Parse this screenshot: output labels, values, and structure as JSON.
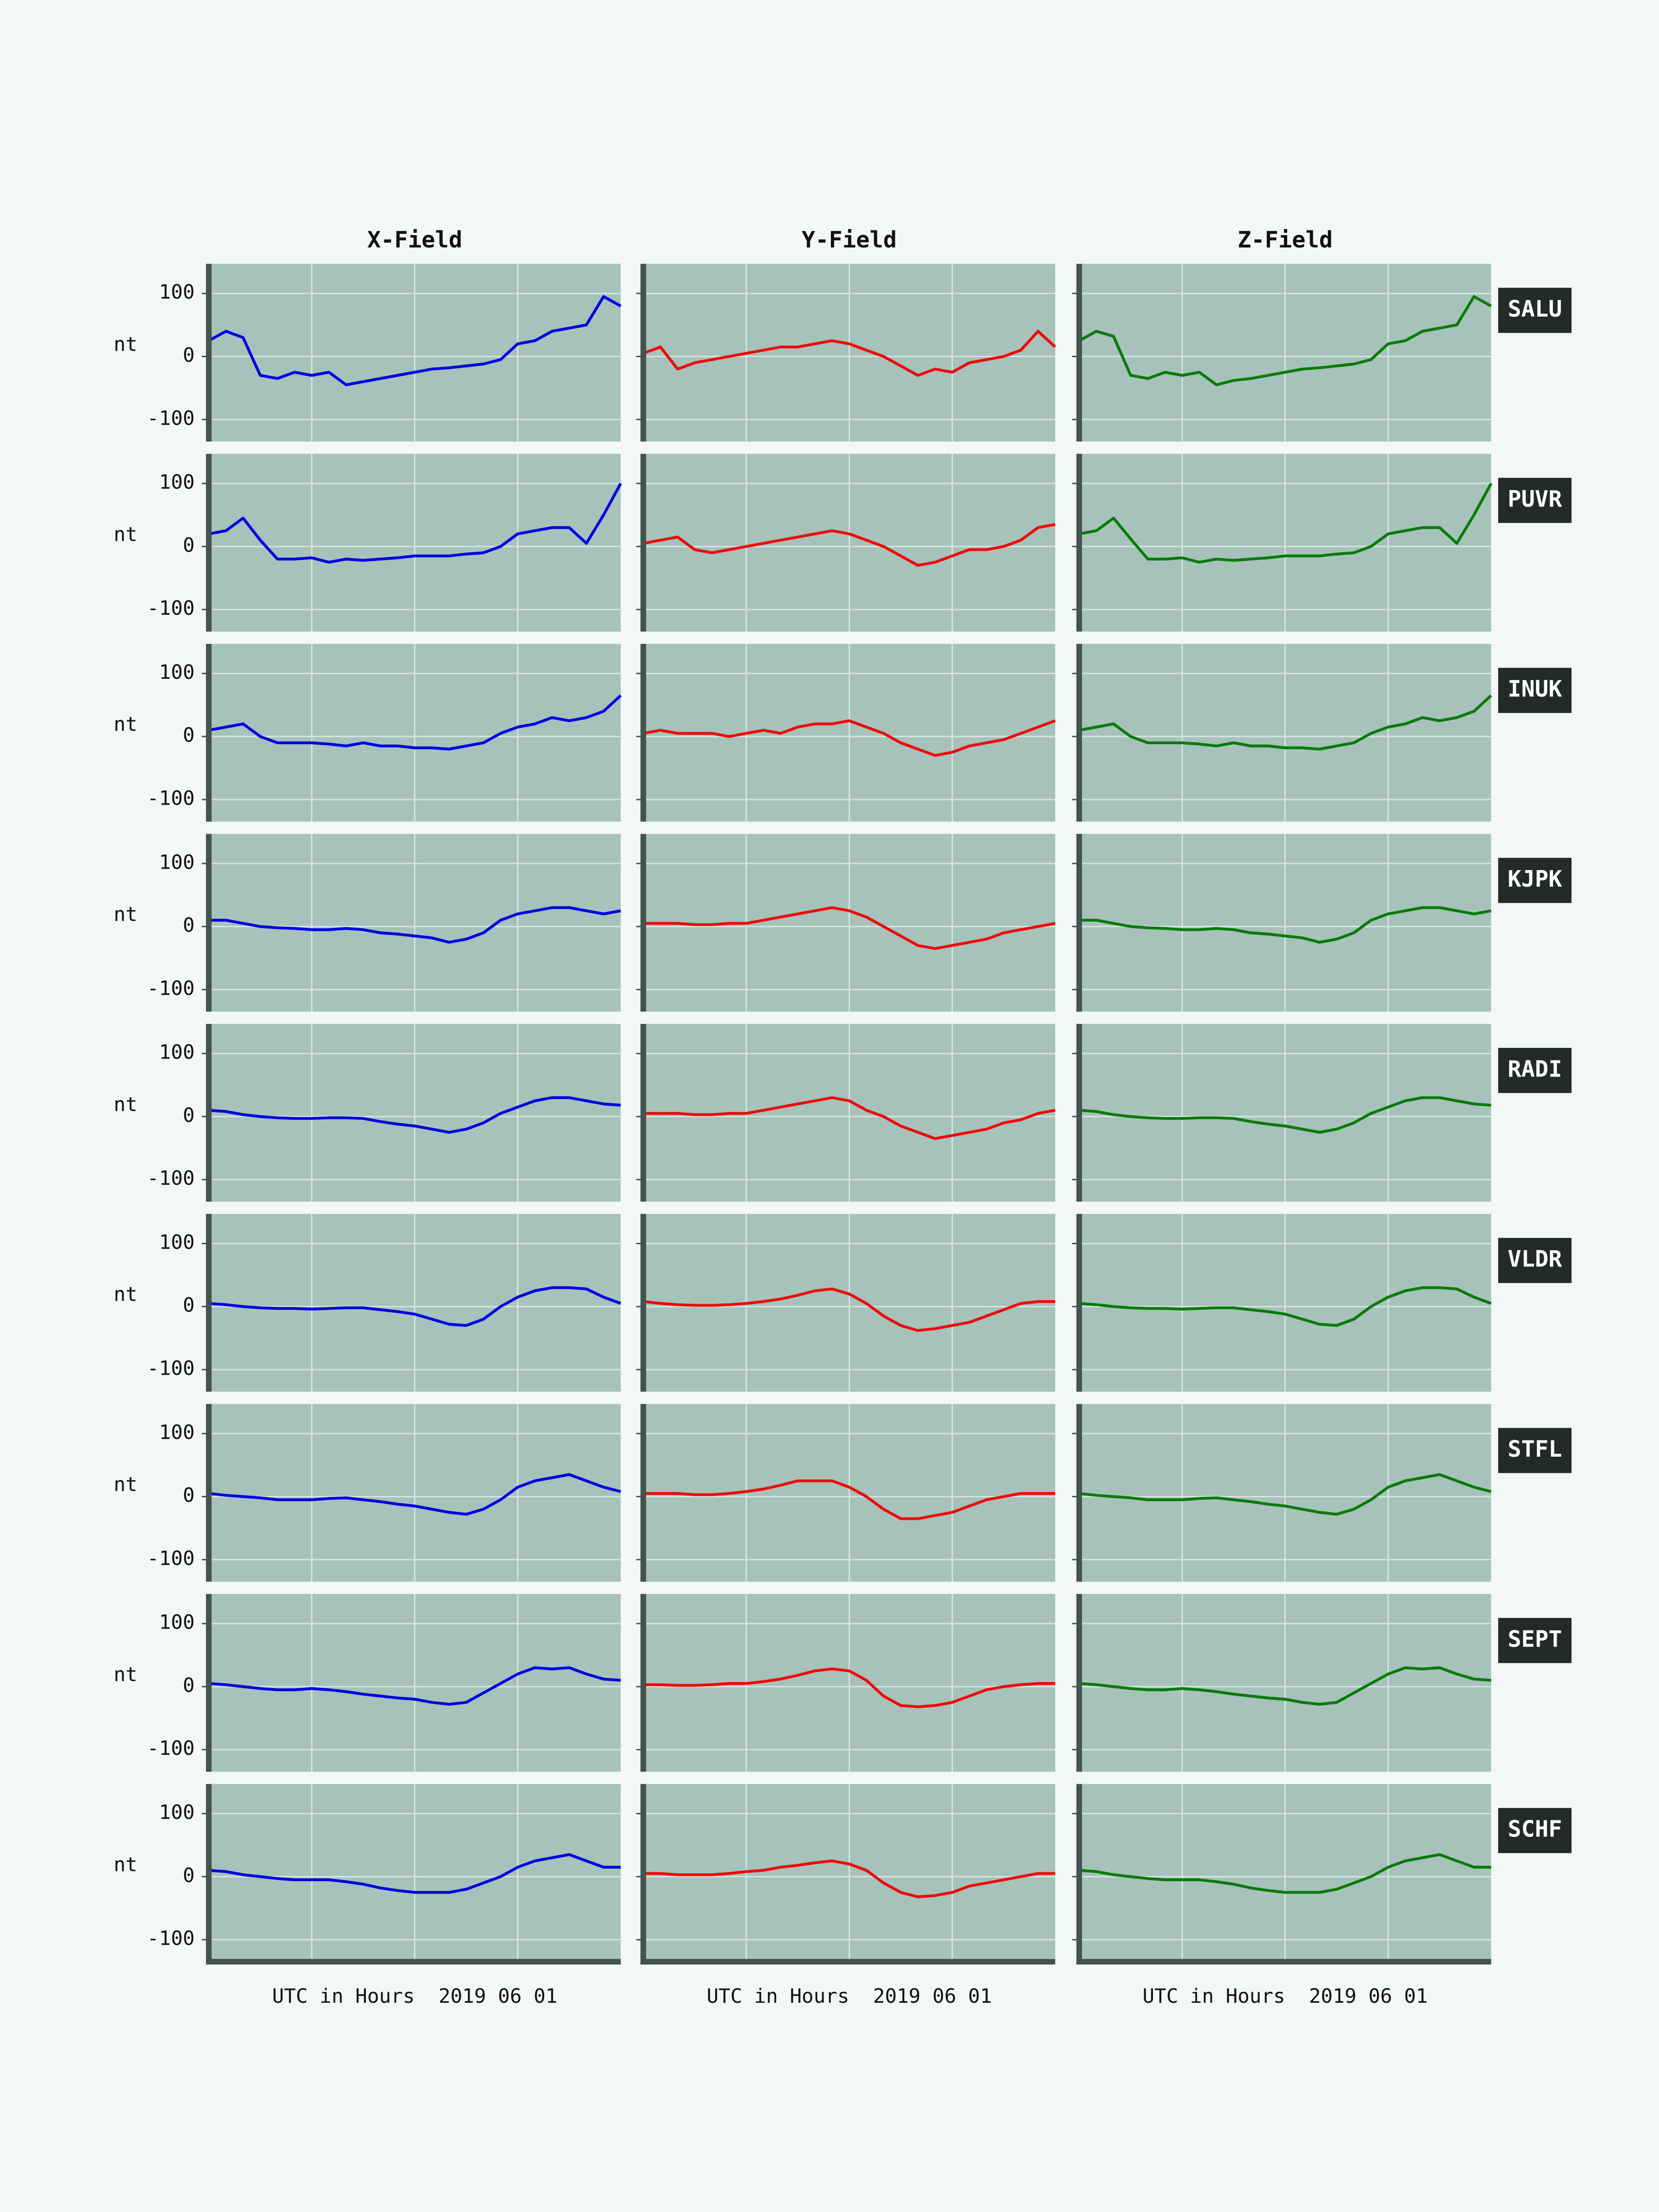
{
  "chart_data": {
    "type": "line",
    "columns": [
      {
        "title": "X-Field",
        "color": "#0000e0"
      },
      {
        "title": "Y-Field",
        "color": "#ee0a0a"
      },
      {
        "title": "Z-Field",
        "color": "#087a08"
      }
    ],
    "x": [
      0,
      1,
      2,
      3,
      4,
      5,
      6,
      7,
      8,
      9,
      10,
      11,
      12,
      13,
      14,
      15,
      16,
      17,
      18,
      19,
      20,
      21,
      22,
      23,
      24
    ],
    "xlim": [
      0,
      24
    ],
    "xticks": [
      6,
      12,
      18
    ],
    "ylim": [
      -135,
      147
    ],
    "yticks": [
      -100,
      0,
      100
    ],
    "ylabel": "nt",
    "xlabel": "UTC in Hours  2019 06 01",
    "grid": true,
    "rows": [
      {
        "label": "SALU",
        "series": [
          {
            "values": [
              25,
              40,
              30,
              -30,
              -35,
              -25,
              -30,
              -25,
              -45,
              -40,
              -35,
              -30,
              -25,
              -20,
              -18,
              -15,
              -12,
              -5,
              20,
              25,
              40,
              45,
              50,
              95,
              80
            ]
          },
          {
            "values": [
              5,
              15,
              -20,
              -10,
              -5,
              0,
              5,
              10,
              15,
              15,
              20,
              25,
              20,
              10,
              0,
              -15,
              -30,
              -20,
              -25,
              -10,
              -5,
              0,
              10,
              40,
              15
            ]
          },
          {
            "values": [
              25,
              40,
              32,
              -30,
              -35,
              -25,
              -30,
              -25,
              -45,
              -38,
              -35,
              -30,
              -25,
              -20,
              -18,
              -15,
              -12,
              -5,
              20,
              25,
              40,
              45,
              50,
              95,
              80
            ]
          }
        ]
      },
      {
        "label": "PUVR",
        "series": [
          {
            "values": [
              20,
              25,
              45,
              10,
              -20,
              -20,
              -18,
              -25,
              -20,
              -22,
              -20,
              -18,
              -15,
              -15,
              -15,
              -12,
              -10,
              0,
              20,
              25,
              30,
              30,
              5,
              50,
              100
            ]
          },
          {
            "values": [
              5,
              10,
              15,
              -5,
              -10,
              -5,
              0,
              5,
              10,
              15,
              20,
              25,
              20,
              10,
              0,
              -15,
              -30,
              -25,
              -15,
              -5,
              -5,
              0,
              10,
              30,
              35
            ]
          },
          {
            "values": [
              20,
              25,
              45,
              12,
              -20,
              -20,
              -18,
              -25,
              -20,
              -22,
              -20,
              -18,
              -15,
              -15,
              -15,
              -12,
              -10,
              0,
              20,
              25,
              30,
              30,
              5,
              50,
              100
            ]
          }
        ]
      },
      {
        "label": "INUK",
        "series": [
          {
            "values": [
              10,
              15,
              20,
              0,
              -10,
              -10,
              -10,
              -12,
              -15,
              -10,
              -15,
              -15,
              -18,
              -18,
              -20,
              -15,
              -10,
              5,
              15,
              20,
              30,
              25,
              30,
              40,
              65
            ]
          },
          {
            "values": [
              5,
              10,
              5,
              5,
              5,
              0,
              5,
              10,
              5,
              15,
              20,
              20,
              25,
              15,
              5,
              -10,
              -20,
              -30,
              -25,
              -15,
              -10,
              -5,
              5,
              15,
              25
            ]
          },
          {
            "values": [
              10,
              15,
              20,
              0,
              -10,
              -10,
              -10,
              -12,
              -15,
              -10,
              -15,
              -15,
              -18,
              -18,
              -20,
              -15,
              -10,
              5,
              15,
              20,
              30,
              25,
              30,
              40,
              65
            ]
          }
        ]
      },
      {
        "label": "KJPK",
        "series": [
          {
            "values": [
              10,
              10,
              5,
              0,
              -2,
              -3,
              -5,
              -5,
              -3,
              -5,
              -10,
              -12,
              -15,
              -18,
              -25,
              -20,
              -10,
              10,
              20,
              25,
              30,
              30,
              25,
              20,
              25
            ]
          },
          {
            "values": [
              5,
              5,
              5,
              3,
              3,
              5,
              5,
              10,
              15,
              20,
              25,
              30,
              25,
              15,
              0,
              -15,
              -30,
              -35,
              -30,
              -25,
              -20,
              -10,
              -5,
              0,
              5
            ]
          },
          {
            "values": [
              10,
              10,
              5,
              0,
              -2,
              -3,
              -5,
              -5,
              -3,
              -5,
              -10,
              -12,
              -15,
              -18,
              -25,
              -20,
              -10,
              10,
              20,
              25,
              30,
              30,
              25,
              20,
              25
            ]
          }
        ]
      },
      {
        "label": "RADI",
        "series": [
          {
            "values": [
              10,
              8,
              3,
              0,
              -2,
              -3,
              -3,
              -2,
              -2,
              -3,
              -8,
              -12,
              -15,
              -20,
              -25,
              -20,
              -10,
              5,
              15,
              25,
              30,
              30,
              25,
              20,
              18
            ]
          },
          {
            "values": [
              5,
              5,
              5,
              3,
              3,
              5,
              5,
              10,
              15,
              20,
              25,
              30,
              25,
              10,
              0,
              -15,
              -25,
              -35,
              -30,
              -25,
              -20,
              -10,
              -5,
              5,
              10
            ]
          },
          {
            "values": [
              10,
              8,
              3,
              0,
              -2,
              -3,
              -3,
              -2,
              -2,
              -3,
              -8,
              -12,
              -15,
              -20,
              -25,
              -20,
              -10,
              5,
              15,
              25,
              30,
              30,
              25,
              20,
              18
            ]
          }
        ]
      },
      {
        "label": "VLDR",
        "series": [
          {
            "values": [
              5,
              3,
              0,
              -2,
              -3,
              -3,
              -4,
              -3,
              -2,
              -2,
              -5,
              -8,
              -12,
              -20,
              -28,
              -30,
              -20,
              0,
              15,
              25,
              30,
              30,
              28,
              15,
              5
            ]
          },
          {
            "values": [
              8,
              5,
              3,
              2,
              2,
              3,
              5,
              8,
              12,
              18,
              25,
              28,
              20,
              5,
              -15,
              -30,
              -38,
              -35,
              -30,
              -25,
              -15,
              -5,
              5,
              8,
              8
            ]
          },
          {
            "values": [
              5,
              3,
              0,
              -2,
              -3,
              -3,
              -4,
              -3,
              -2,
              -2,
              -5,
              -8,
              -12,
              -20,
              -28,
              -30,
              -20,
              0,
              15,
              25,
              30,
              30,
              28,
              15,
              5
            ]
          }
        ]
      },
      {
        "label": "STFL",
        "series": [
          {
            "values": [
              5,
              2,
              0,
              -2,
              -5,
              -5,
              -5,
              -3,
              -2,
              -5,
              -8,
              -12,
              -15,
              -20,
              -25,
              -28,
              -20,
              -5,
              15,
              25,
              30,
              35,
              25,
              15,
              8
            ]
          },
          {
            "values": [
              5,
              5,
              5,
              3,
              3,
              5,
              8,
              12,
              18,
              25,
              25,
              25,
              15,
              0,
              -20,
              -35,
              -35,
              -30,
              -25,
              -15,
              -5,
              0,
              5,
              5,
              5
            ]
          },
          {
            "values": [
              5,
              2,
              0,
              -2,
              -5,
              -5,
              -5,
              -3,
              -2,
              -5,
              -8,
              -12,
              -15,
              -20,
              -25,
              -28,
              -20,
              -5,
              15,
              25,
              30,
              35,
              25,
              15,
              8
            ]
          }
        ]
      },
      {
        "label": "SEPT",
        "series": [
          {
            "values": [
              5,
              3,
              0,
              -3,
              -5,
              -5,
              -3,
              -5,
              -8,
              -12,
              -15,
              -18,
              -20,
              -25,
              -28,
              -25,
              -10,
              5,
              20,
              30,
              28,
              30,
              20,
              12,
              10
            ]
          },
          {
            "values": [
              3,
              3,
              2,
              2,
              3,
              5,
              5,
              8,
              12,
              18,
              25,
              28,
              25,
              10,
              -15,
              -30,
              -32,
              -30,
              -25,
              -15,
              -5,
              0,
              3,
              5,
              5
            ]
          },
          {
            "values": [
              5,
              3,
              0,
              -3,
              -5,
              -5,
              -3,
              -5,
              -8,
              -12,
              -15,
              -18,
              -20,
              -25,
              -28,
              -25,
              -10,
              5,
              20,
              30,
              28,
              30,
              20,
              12,
              10
            ]
          }
        ]
      },
      {
        "label": "SCHF",
        "series": [
          {
            "values": [
              10,
              8,
              3,
              0,
              -3,
              -5,
              -5,
              -5,
              -8,
              -12,
              -18,
              -22,
              -25,
              -25,
              -25,
              -20,
              -10,
              0,
              15,
              25,
              30,
              35,
              25,
              15,
              15
            ]
          },
          {
            "values": [
              5,
              5,
              3,
              3,
              3,
              5,
              8,
              10,
              15,
              18,
              22,
              25,
              20,
              10,
              -10,
              -25,
              -32,
              -30,
              -25,
              -15,
              -10,
              -5,
              0,
              5,
              5
            ]
          },
          {
            "values": [
              10,
              8,
              3,
              0,
              -3,
              -5,
              -5,
              -5,
              -8,
              -12,
              -18,
              -22,
              -25,
              -25,
              -25,
              -20,
              -10,
              0,
              15,
              25,
              30,
              35,
              25,
              15,
              15
            ]
          }
        ]
      }
    ]
  }
}
